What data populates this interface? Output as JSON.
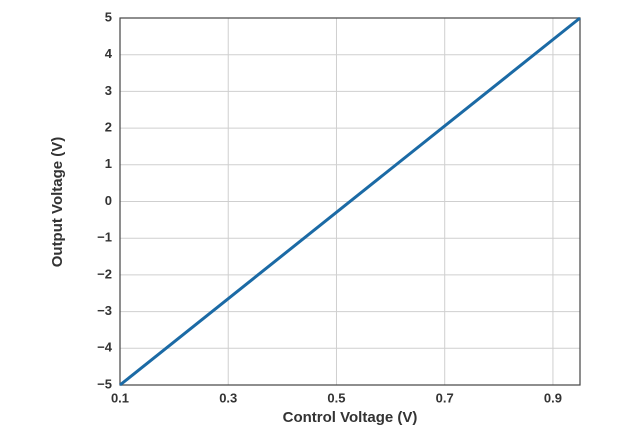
{
  "chart_data": {
    "type": "line",
    "x_label": "Control Voltage (V)",
    "y_label": "Output Voltage (V)",
    "series": [
      {
        "color": "#1b6aa5",
        "x": [
          0.1,
          0.95
        ],
        "values": [
          -5,
          5
        ]
      }
    ],
    "xlim": [
      0.1,
      0.95
    ],
    "xticks": [
      0.1,
      0.3,
      0.5,
      0.7,
      0.9
    ],
    "ylim": [
      -5,
      5
    ],
    "yticks": [
      {
        "value": -5,
        "label": "−5"
      },
      {
        "value": -4,
        "label": "−4"
      },
      {
        "value": -3,
        "label": "−3"
      },
      {
        "value": -2,
        "label": "−2"
      },
      {
        "value": -1,
        "label": "−1"
      },
      0,
      1,
      2,
      3,
      4,
      5
    ],
    "grid": true
  }
}
